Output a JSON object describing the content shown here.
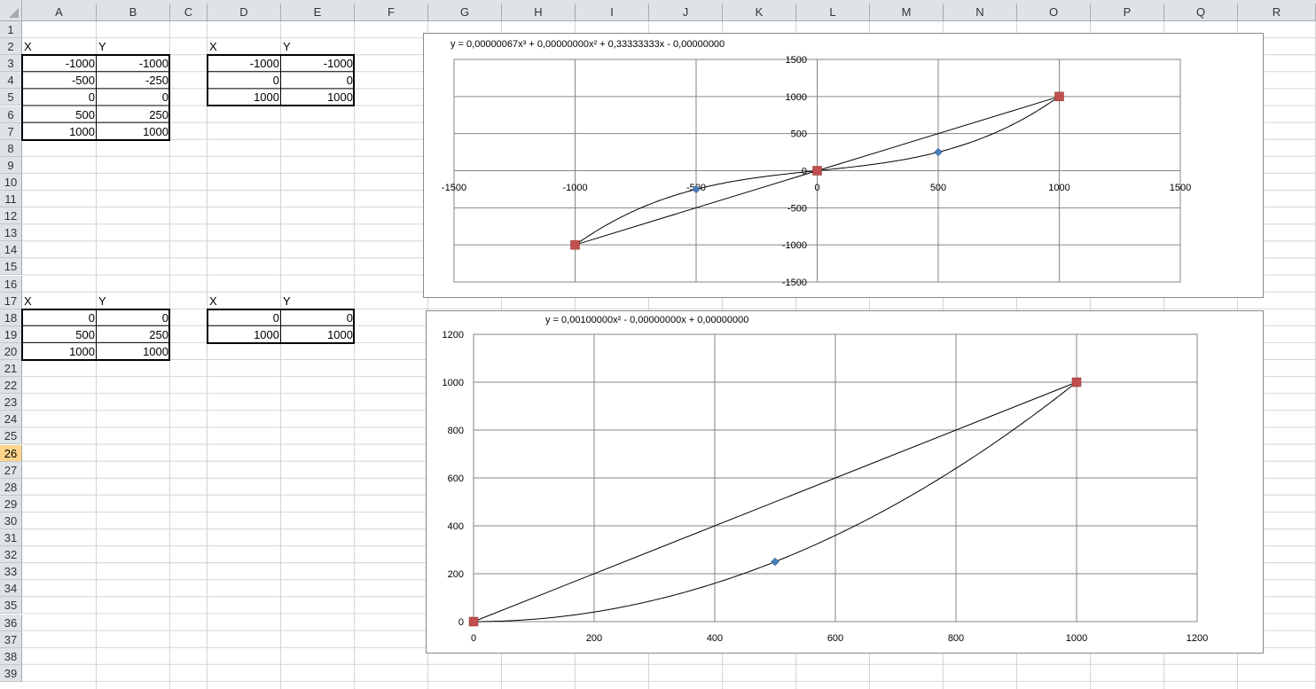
{
  "columns": [
    "A",
    "B",
    "C",
    "D",
    "E",
    "F",
    "G",
    "H",
    "I",
    "J",
    "K",
    "L",
    "M",
    "N",
    "O",
    "P",
    "Q",
    "R"
  ],
  "rows": [
    "1",
    "2",
    "3",
    "4",
    "5",
    "6",
    "7",
    "8",
    "9",
    "10",
    "11",
    "12",
    "13",
    "14",
    "15",
    "16",
    "17",
    "18",
    "19",
    "20",
    "21",
    "22",
    "23",
    "24",
    "25",
    "26",
    "27",
    "28",
    "29",
    "30",
    "31",
    "32",
    "33",
    "34",
    "35",
    "36",
    "37",
    "38",
    "39"
  ],
  "selected_row": "26",
  "tables": {
    "t1": {
      "hx": "X",
      "hy": "Y",
      "rows": [
        [
          "-1000",
          "-1000"
        ],
        [
          "-500",
          "-250"
        ],
        [
          "0",
          "0"
        ],
        [
          "500",
          "250"
        ],
        [
          "1000",
          "1000"
        ]
      ]
    },
    "t2": {
      "hx": "X",
      "hy": "Y",
      "rows": [
        [
          "-1000",
          "-1000"
        ],
        [
          "0",
          "0"
        ],
        [
          "1000",
          "1000"
        ]
      ]
    },
    "t3": {
      "hx": "X",
      "hy": "Y",
      "rows": [
        [
          "0",
          "0"
        ],
        [
          "500",
          "250"
        ],
        [
          "1000",
          "1000"
        ]
      ]
    },
    "t4": {
      "hx": "X",
      "hy": "Y",
      "rows": [
        [
          "0",
          "0"
        ],
        [
          "1000",
          "1000"
        ]
      ]
    }
  },
  "chart_data": [
    {
      "type": "scatter",
      "trendline_label": "y = 0,00000067x³ + 0,00000000x² + 0,33333333x - 0,00000000",
      "xlim": [
        -1500,
        1500
      ],
      "ylim": [
        -1500,
        1500
      ],
      "x_ticks": [
        "-1500",
        "-1000",
        "-500",
        "0",
        "500",
        "1000",
        "1500"
      ],
      "y_ticks": [
        "1500",
        "1000",
        "500",
        "0",
        "-500",
        "-1000",
        "-1500"
      ],
      "grid": true,
      "series": [
        {
          "marker": "diamond",
          "color": "#4a7ebb",
          "x": [
            -1000,
            -500,
            0,
            500,
            1000
          ],
          "y": [
            -1000,
            -250,
            0,
            250,
            1000
          ]
        },
        {
          "marker": "square",
          "color": "#c0504d",
          "x": [
            -1000,
            0,
            1000
          ],
          "y": [
            -1000,
            0,
            1000
          ]
        }
      ]
    },
    {
      "type": "scatter",
      "trendline_label": "y = 0,00100000x² - 0,00000000x + 0,00000000",
      "xlim": [
        0,
        1200
      ],
      "ylim": [
        0,
        1200
      ],
      "x_ticks": [
        "0",
        "200",
        "400",
        "600",
        "800",
        "1000",
        "1200"
      ],
      "y_ticks": [
        "1200",
        "1000",
        "800",
        "600",
        "400",
        "200",
        "0"
      ],
      "grid": true,
      "series": [
        {
          "marker": "diamond",
          "color": "#4a7ebb",
          "x": [
            0,
            500,
            1000
          ],
          "y": [
            0,
            250,
            1000
          ]
        },
        {
          "marker": "square",
          "color": "#c0504d",
          "x": [
            0,
            1000
          ],
          "y": [
            0,
            1000
          ]
        }
      ]
    }
  ]
}
